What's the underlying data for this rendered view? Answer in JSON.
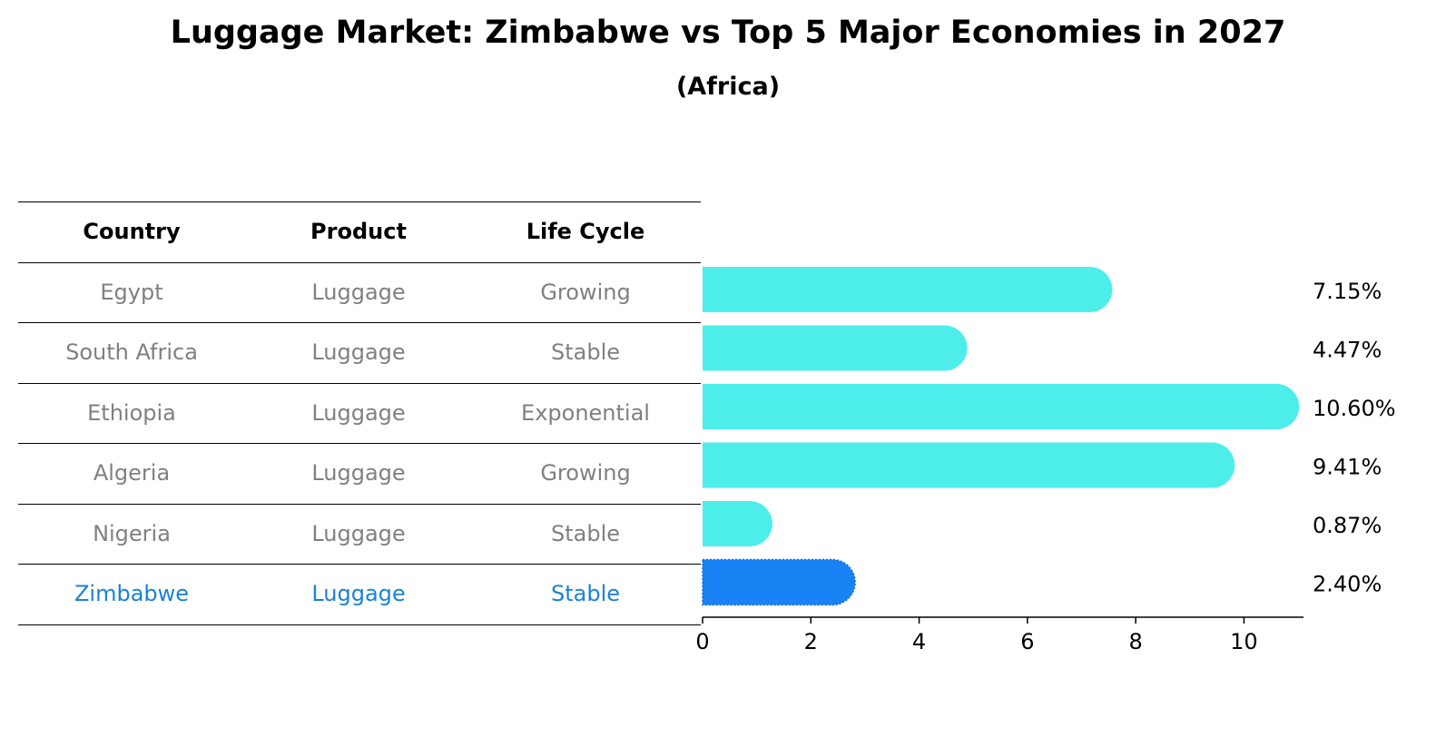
{
  "title": "Luggage Market: Zimbabwe vs Top 5 Major Economies in 2027",
  "subtitle": "(Africa)",
  "colors": {
    "bar": "#4deeea",
    "highlight": "#1982f5",
    "highlight_text": "#1a82d6",
    "muted_text": "#808080"
  },
  "table": {
    "headers": [
      "Country",
      "Product",
      "Life Cycle"
    ],
    "rows": [
      [
        "Egypt",
        "Luggage",
        "Growing"
      ],
      [
        "South Africa",
        "Luggage",
        "Stable"
      ],
      [
        "Ethiopia",
        "Luggage",
        "Exponential"
      ],
      [
        "Algeria",
        "Luggage",
        "Growing"
      ],
      [
        "Nigeria",
        "Luggage",
        "Stable"
      ],
      [
        "Zimbabwe",
        "Luggage",
        "Stable"
      ]
    ]
  },
  "chart_data": {
    "type": "bar",
    "orientation": "horizontal",
    "categories": [
      "Egypt",
      "South Africa",
      "Ethiopia",
      "Algeria",
      "Nigeria",
      "Zimbabwe"
    ],
    "values": [
      7.15,
      4.47,
      10.6,
      9.41,
      0.87,
      2.4
    ],
    "value_labels": [
      "7.15%",
      "4.47%",
      "10.60%",
      "9.41%",
      "0.87%",
      "2.40%"
    ],
    "highlight": "Zimbabwe",
    "xlim": [
      0,
      11.1
    ],
    "xticks": [
      0,
      2,
      4,
      6,
      8,
      10
    ],
    "title": "Luggage Market: Zimbabwe vs Top 5 Major Economies in 2027",
    "xlabel": "",
    "ylabel": ""
  }
}
